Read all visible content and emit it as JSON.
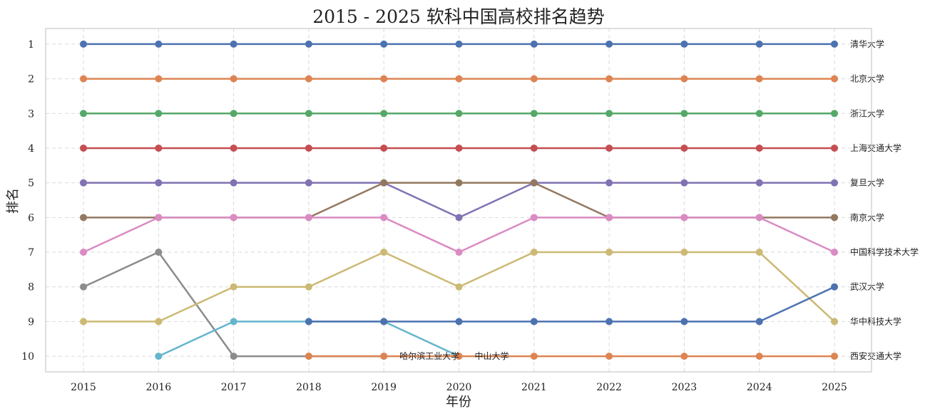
{
  "chart_data": {
    "type": "line",
    "title": "2015 - 2025 软科中国高校排名趋势",
    "xlabel": "年份",
    "ylabel": "排名",
    "x": [
      2015,
      2016,
      2017,
      2018,
      2019,
      2020,
      2021,
      2022,
      2023,
      2024,
      2025
    ],
    "x_tick_labels": [
      "2015",
      "2016",
      "2017",
      "2018",
      "2019",
      "2020",
      "2021",
      "2022",
      "2023",
      "2024",
      "2025"
    ],
    "y_tick_labels": [
      "1",
      "2",
      "3",
      "4",
      "5",
      "6",
      "7",
      "8",
      "9",
      "10"
    ],
    "ylim": [
      10.45,
      0.55
    ],
    "y_inverted": true,
    "grid": true,
    "series": [
      {
        "name": "清华大学",
        "color": "#4c72b0",
        "values": [
          1,
          1,
          1,
          1,
          1,
          1,
          1,
          1,
          1,
          1,
          1
        ]
      },
      {
        "name": "北京大学",
        "color": "#dd8452",
        "values": [
          2,
          2,
          2,
          2,
          2,
          2,
          2,
          2,
          2,
          2,
          2
        ]
      },
      {
        "name": "浙江大学",
        "color": "#55a868",
        "values": [
          3,
          3,
          3,
          3,
          3,
          3,
          3,
          3,
          3,
          3,
          3
        ]
      },
      {
        "name": "上海交通大学",
        "color": "#c44e52",
        "values": [
          4,
          4,
          4,
          4,
          4,
          4,
          4,
          4,
          4,
          4,
          4
        ]
      },
      {
        "name": "复旦大学",
        "color": "#8172b3",
        "values": [
          5,
          5,
          5,
          5,
          5,
          6,
          5,
          5,
          5,
          5,
          5
        ]
      },
      {
        "name": "南京大学",
        "color": "#937860",
        "values": [
          6,
          6,
          6,
          6,
          5,
          5,
          5,
          6,
          6,
          6,
          6
        ]
      },
      {
        "name": "中国科学技术大学",
        "color": "#da8bc3",
        "values": [
          7,
          6,
          6,
          6,
          6,
          7,
          6,
          6,
          6,
          6,
          7
        ]
      },
      {
        "name": "哈尔滨工业大学",
        "color": "#8c8c8c",
        "values": [
          8,
          7,
          10,
          10,
          10,
          null,
          null,
          null,
          null,
          null,
          null
        ]
      },
      {
        "name": "华中科技大学",
        "color": "#ccb974",
        "values": [
          9,
          9,
          8,
          8,
          7,
          8,
          7,
          7,
          7,
          7,
          9
        ]
      },
      {
        "name": "中山大学",
        "color": "#64b5cd",
        "values": [
          null,
          10,
          9,
          9,
          9,
          10,
          null,
          null,
          null,
          null,
          null
        ]
      },
      {
        "name": "武汉大学",
        "color": "#4c72b0",
        "values": [
          null,
          null,
          null,
          9,
          9,
          9,
          9,
          9,
          9,
          9,
          8
        ]
      },
      {
        "name": "西安交通大学",
        "color": "#dd8452",
        "values": [
          null,
          null,
          null,
          10,
          10,
          10,
          10,
          10,
          10,
          10,
          10
        ]
      }
    ],
    "end_labels": [
      {
        "text": "清华大学",
        "rank": 1
      },
      {
        "text": "北京大学",
        "rank": 2
      },
      {
        "text": "浙江大学",
        "rank": 3
      },
      {
        "text": "上海交通大学",
        "rank": 4
      },
      {
        "text": "复旦大学",
        "rank": 5
      },
      {
        "text": "南京大学",
        "rank": 6
      },
      {
        "text": "中国科学技术大学",
        "rank": 7
      },
      {
        "text": "武汉大学",
        "rank": 8
      },
      {
        "text": "华中科技大学",
        "rank": 9
      },
      {
        "text": "西安交通大学",
        "rank": 10
      }
    ],
    "inline_labels": [
      {
        "text": "哈尔滨工业大学",
        "year": 2019,
        "rank": 10
      },
      {
        "text": "中山大学",
        "year": 2020,
        "rank": 10
      }
    ]
  }
}
